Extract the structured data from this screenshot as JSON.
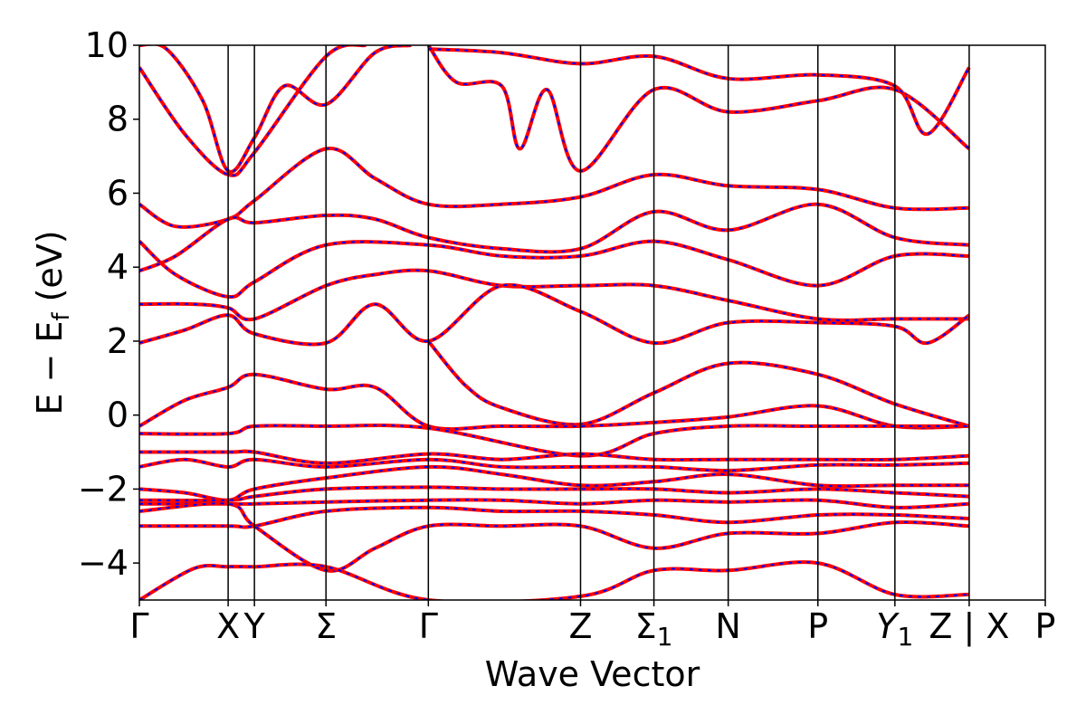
{
  "chart_data": {
    "type": "line",
    "xlabel": "Wave Vector",
    "ylabel": "E − E",
    "ylabel_sub": "f",
    "ylabel_unit": " (eV)",
    "ylim": [
      -5,
      10
    ],
    "yticks": [
      -4,
      -2,
      0,
      2,
      4,
      6,
      8,
      10
    ],
    "ytick_labels": [
      "−4",
      "−2",
      "0",
      "2",
      "4",
      "6",
      "8",
      "10"
    ],
    "xlim": [
      0,
      1
    ],
    "kpoints": [
      {
        "label": "Γ",
        "pos": 0.0
      },
      {
        "label": "X",
        "pos": 0.098
      },
      {
        "label": "Y",
        "pos": 0.127
      },
      {
        "label": "Σ",
        "pos": 0.206
      },
      {
        "label": "Γ",
        "pos": 0.319
      },
      {
        "label": "Z",
        "pos": 0.487
      },
      {
        "label": "Σ",
        "sub": "1",
        "pos": 0.568
      },
      {
        "label": "N",
        "pos": 0.65
      },
      {
        "label": "P",
        "pos": 0.749
      },
      {
        "label": "Y",
        "sub": "1",
        "italic": true,
        "pos": 0.834
      },
      {
        "label": "Z | X",
        "pos": 0.916
      },
      {
        "label": "P",
        "pos": 1.0
      }
    ],
    "grid": false,
    "legend": "none",
    "colors": {
      "primary": "#ff0000",
      "secondary": "#0000ff",
      "vline": "#000000"
    },
    "bands": [
      [
        [
          0,
          9.4
        ],
        [
          0.05,
          7.6
        ],
        [
          0.098,
          6.5
        ],
        [
          0.127,
          7.1
        ],
        [
          0.206,
          9.7
        ],
        [
          0.25,
          10
        ]
      ],
      [
        [
          0,
          10
        ],
        [
          0.03,
          9.9
        ],
        [
          0.07,
          8.5
        ],
        [
          0.098,
          6.6
        ],
        [
          0.127,
          7.5
        ],
        [
          0.16,
          8.9
        ],
        [
          0.206,
          8.4
        ],
        [
          0.26,
          9.8
        ],
        [
          0.3,
          10
        ]
      ],
      [
        [
          0,
          5.7
        ],
        [
          0.04,
          5.1
        ],
        [
          0.098,
          5.3
        ],
        [
          0.127,
          5.8
        ],
        [
          0.206,
          7.2
        ],
        [
          0.26,
          6.4
        ],
        [
          0.319,
          5.7
        ],
        [
          0.4,
          5.7
        ],
        [
          0.487,
          5.9
        ],
        [
          0.568,
          6.5
        ],
        [
          0.65,
          6.2
        ],
        [
          0.749,
          6.1
        ],
        [
          0.834,
          5.6
        ],
        [
          0.916,
          5.6
        ]
      ],
      [
        [
          0,
          4.7
        ],
        [
          0.04,
          3.8
        ],
        [
          0.098,
          3.2
        ],
        [
          0.127,
          3.6
        ],
        [
          0.206,
          4.6
        ],
        [
          0.319,
          4.6
        ],
        [
          0.4,
          4.3
        ],
        [
          0.487,
          4.3
        ],
        [
          0.568,
          4.7
        ],
        [
          0.65,
          4.2
        ],
        [
          0.749,
          3.5
        ],
        [
          0.834,
          4.3
        ],
        [
          0.916,
          4.3
        ]
      ],
      [
        [
          0,
          3.9
        ],
        [
          0.04,
          4.3
        ],
        [
          0.098,
          5.3
        ],
        [
          0.127,
          5.2
        ],
        [
          0.206,
          5.4
        ],
        [
          0.26,
          5.3
        ],
        [
          0.319,
          4.8
        ],
        [
          0.4,
          4.5
        ],
        [
          0.487,
          4.5
        ],
        [
          0.568,
          5.5
        ],
        [
          0.65,
          5.0
        ],
        [
          0.749,
          5.7
        ],
        [
          0.834,
          4.8
        ],
        [
          0.916,
          4.6
        ]
      ],
      [
        [
          0,
          3.0
        ],
        [
          0.06,
          3.0
        ],
        [
          0.098,
          2.9
        ],
        [
          0.127,
          2.6
        ],
        [
          0.206,
          3.5
        ],
        [
          0.26,
          3.8
        ],
        [
          0.319,
          3.9
        ],
        [
          0.4,
          3.5
        ],
        [
          0.487,
          3.5
        ],
        [
          0.568,
          3.5
        ],
        [
          0.65,
          3.1
        ],
        [
          0.749,
          2.6
        ],
        [
          0.834,
          2.6
        ],
        [
          0.916,
          2.6
        ]
      ],
      [
        [
          0,
          1.95
        ],
        [
          0.05,
          2.3
        ],
        [
          0.098,
          2.7
        ],
        [
          0.127,
          2.2
        ],
        [
          0.206,
          1.95
        ],
        [
          0.26,
          3.0
        ],
        [
          0.319,
          2.0
        ],
        [
          0.4,
          3.5
        ],
        [
          0.487,
          2.8
        ],
        [
          0.568,
          1.95
        ],
        [
          0.65,
          2.5
        ],
        [
          0.749,
          2.5
        ],
        [
          0.834,
          2.4
        ],
        [
          0.87,
          1.95
        ],
        [
          0.916,
          2.7
        ]
      ],
      [
        [
          0.319,
          2.0
        ],
        [
          0.36,
          0.8
        ],
        [
          0.4,
          0.2
        ],
        [
          0.487,
          -0.25
        ],
        [
          0.568,
          0.6
        ],
        [
          0.65,
          1.4
        ],
        [
          0.749,
          1.1
        ],
        [
          0.834,
          0.3
        ],
        [
          0.916,
          -0.3
        ]
      ],
      [
        [
          0,
          -0.3
        ],
        [
          0.05,
          0.4
        ],
        [
          0.098,
          0.75
        ],
        [
          0.127,
          1.1
        ],
        [
          0.206,
          0.7
        ],
        [
          0.26,
          0.75
        ],
        [
          0.319,
          -0.3
        ],
        [
          0.4,
          -0.3
        ],
        [
          0.487,
          -0.3
        ],
        [
          0.568,
          -0.2
        ],
        [
          0.65,
          -0.05
        ],
        [
          0.749,
          0.25
        ],
        [
          0.834,
          -0.3
        ],
        [
          0.916,
          -0.3
        ]
      ],
      [
        [
          0,
          -0.5
        ],
        [
          0.098,
          -0.5
        ],
        [
          0.127,
          -0.3
        ],
        [
          0.206,
          -0.3
        ],
        [
          0.319,
          -0.35
        ],
        [
          0.487,
          -1.1
        ],
        [
          0.568,
          -0.5
        ],
        [
          0.65,
          -0.3
        ],
        [
          0.749,
          -0.3
        ],
        [
          0.916,
          -0.3
        ]
      ],
      [
        [
          0,
          -1.0
        ],
        [
          0.098,
          -1.0
        ],
        [
          0.127,
          -1.0
        ],
        [
          0.206,
          -1.3
        ],
        [
          0.319,
          -1.05
        ],
        [
          0.4,
          -1.2
        ],
        [
          0.487,
          -1.05
        ],
        [
          0.568,
          -1.2
        ],
        [
          0.65,
          -1.2
        ],
        [
          0.749,
          -1.2
        ],
        [
          0.834,
          -1.2
        ],
        [
          0.916,
          -1.1
        ]
      ],
      [
        [
          0,
          -1.4
        ],
        [
          0.05,
          -1.2
        ],
        [
          0.098,
          -1.4
        ],
        [
          0.127,
          -1.2
        ],
        [
          0.206,
          -1.4
        ],
        [
          0.319,
          -1.2
        ],
        [
          0.4,
          -1.4
        ],
        [
          0.487,
          -1.4
        ],
        [
          0.568,
          -1.4
        ],
        [
          0.65,
          -1.5
        ],
        [
          0.749,
          -1.35
        ],
        [
          0.834,
          -1.35
        ],
        [
          0.916,
          -1.3
        ]
      ],
      [
        [
          0,
          -2.0
        ],
        [
          0.05,
          -2.1
        ],
        [
          0.098,
          -2.3
        ],
        [
          0.127,
          -2.0
        ],
        [
          0.206,
          -1.7
        ],
        [
          0.319,
          -1.4
        ],
        [
          0.4,
          -1.6
        ],
        [
          0.487,
          -1.9
        ],
        [
          0.568,
          -1.8
        ],
        [
          0.65,
          -1.6
        ],
        [
          0.749,
          -1.9
        ],
        [
          0.834,
          -1.9
        ],
        [
          0.916,
          -1.9
        ]
      ],
      [
        [
          0,
          -2.3
        ],
        [
          0.098,
          -2.3
        ],
        [
          0.127,
          -2.2
        ],
        [
          0.206,
          -2.0
        ],
        [
          0.319,
          -1.95
        ],
        [
          0.4,
          -2.0
        ],
        [
          0.487,
          -2.0
        ],
        [
          0.568,
          -2.0
        ],
        [
          0.65,
          -2.1
        ],
        [
          0.749,
          -2.0
        ],
        [
          0.834,
          -2.1
        ],
        [
          0.916,
          -2.2
        ]
      ],
      [
        [
          0,
          -2.4
        ],
        [
          0.098,
          -2.4
        ],
        [
          0.127,
          -2.4
        ],
        [
          0.206,
          -2.35
        ],
        [
          0.319,
          -2.3
        ],
        [
          0.4,
          -2.3
        ],
        [
          0.487,
          -2.4
        ],
        [
          0.568,
          -2.3
        ],
        [
          0.65,
          -2.35
        ],
        [
          0.749,
          -2.3
        ],
        [
          0.834,
          -2.5
        ],
        [
          0.916,
          -2.4
        ]
      ],
      [
        [
          0,
          -3.0
        ],
        [
          0.098,
          -3.0
        ],
        [
          0.127,
          -3.0
        ],
        [
          0.206,
          -2.6
        ],
        [
          0.319,
          -2.5
        ],
        [
          0.4,
          -2.6
        ],
        [
          0.487,
          -2.6
        ],
        [
          0.568,
          -2.7
        ],
        [
          0.65,
          -2.9
        ],
        [
          0.749,
          -2.7
        ],
        [
          0.834,
          -2.7
        ],
        [
          0.916,
          -2.8
        ]
      ],
      [
        [
          0,
          -2.6
        ],
        [
          0.098,
          -2.4
        ],
        [
          0.127,
          -3.0
        ],
        [
          0.206,
          -4.2
        ],
        [
          0.26,
          -3.6
        ],
        [
          0.319,
          -3.0
        ],
        [
          0.4,
          -3.0
        ],
        [
          0.487,
          -3.0
        ],
        [
          0.568,
          -3.6
        ],
        [
          0.65,
          -3.2
        ],
        [
          0.749,
          -3.2
        ],
        [
          0.834,
          -2.9
        ],
        [
          0.916,
          -3.0
        ]
      ],
      [
        [
          0,
          -5.0
        ],
        [
          0.06,
          -4.15
        ],
        [
          0.098,
          -4.1
        ],
        [
          0.127,
          -4.1
        ],
        [
          0.206,
          -4.1
        ],
        [
          0.319,
          -5.0
        ],
        [
          0.487,
          -4.9
        ],
        [
          0.568,
          -4.2
        ],
        [
          0.65,
          -4.2
        ],
        [
          0.749,
          -4.0
        ],
        [
          0.834,
          -4.85
        ],
        [
          0.916,
          -4.85
        ]
      ],
      [
        [
          0.319,
          10
        ],
        [
          0.35,
          9.0
        ],
        [
          0.4,
          8.9
        ],
        [
          0.42,
          7.2
        ],
        [
          0.45,
          8.8
        ],
        [
          0.487,
          6.6
        ],
        [
          0.568,
          8.8
        ],
        [
          0.65,
          8.2
        ],
        [
          0.749,
          8.5
        ],
        [
          0.834,
          8.8
        ],
        [
          0.916,
          7.2
        ]
      ],
      [
        [
          0.319,
          9.9
        ],
        [
          0.4,
          9.8
        ],
        [
          0.487,
          9.5
        ],
        [
          0.568,
          9.7
        ],
        [
          0.65,
          9.1
        ],
        [
          0.749,
          9.2
        ],
        [
          0.834,
          8.9
        ],
        [
          0.87,
          7.6
        ],
        [
          0.916,
          9.4
        ]
      ]
    ]
  }
}
